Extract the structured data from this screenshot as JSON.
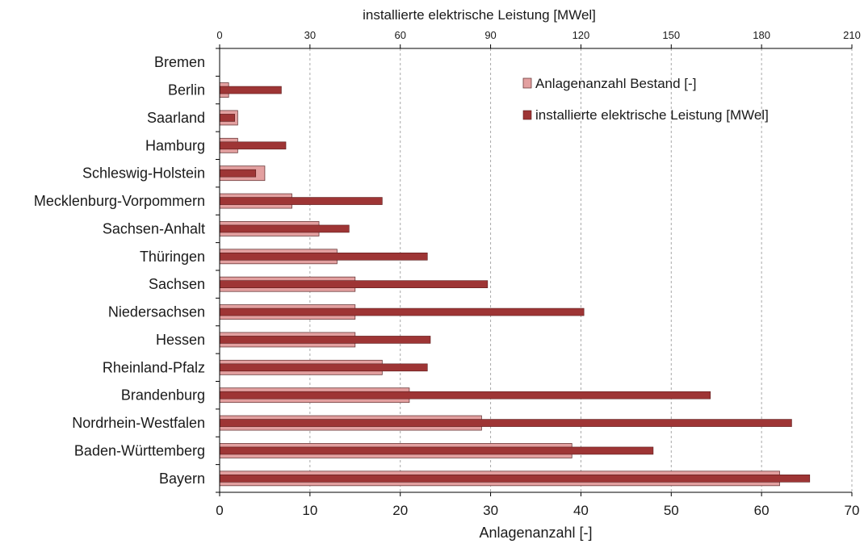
{
  "chart_data": {
    "type": "bar",
    "orientation": "horizontal",
    "categories": [
      "Bremen",
      "Berlin",
      "Saarland",
      "Hamburg",
      "Schleswig-Holstein",
      "Mecklenburg-Vorpommern",
      "Sachsen-Anhalt",
      "Thüringen",
      "Sachsen",
      "Niedersachsen",
      "Hessen",
      "Rheinland-Pfalz",
      "Brandenburg",
      "Nordrhein-Westfalen",
      "Baden-Württemberg",
      "Bayern"
    ],
    "series": [
      {
        "name": "Anlagenanzahl Bestand [-]",
        "axis": "bottom",
        "color": "#e3a0a0",
        "values": [
          0,
          1,
          2,
          2,
          5,
          8,
          11,
          13,
          15,
          15,
          15,
          18,
          21,
          29,
          39,
          62
        ]
      },
      {
        "name": "installierte elektrische Leistung [MWel]",
        "axis": "top",
        "color": "#9e3535",
        "values": [
          0,
          20.5,
          5,
          22,
          12,
          54,
          43,
          69,
          89,
          121,
          70,
          69,
          163,
          190,
          144,
          196
        ]
      }
    ],
    "xlabel": "Anlagenanzahl [-]",
    "x2label": "installierte elektrische Leistung [MWel]",
    "xlim": [
      0,
      70
    ],
    "xticks": [
      "0",
      "10",
      "20",
      "30",
      "40",
      "50",
      "60",
      "70"
    ],
    "x2lim": [
      0,
      210
    ],
    "x2ticks": [
      "0",
      "30",
      "60",
      "90",
      "120",
      "150",
      "180",
      "210"
    ],
    "grid": "vertical dashed",
    "legend_position": "top-right"
  }
}
